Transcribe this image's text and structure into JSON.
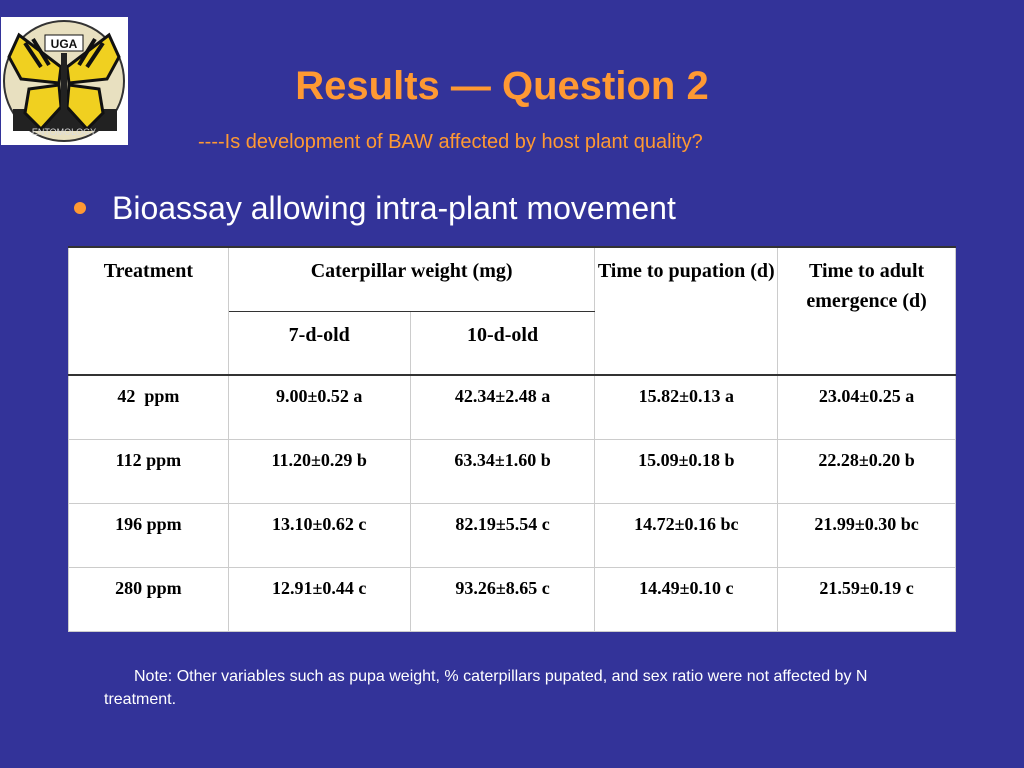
{
  "logo": {
    "name": "UGA Entomology butterfly logo",
    "top_text": "UGA",
    "bottom_text": "ENTOMOLOGY"
  },
  "slide": {
    "title": "Results — Question 2",
    "subtitle": "----Is development of BAW affected by host plant quality?",
    "bullet": "Bioassay allowing intra-plant movement",
    "note": "Note: Other variables such as pupa weight, % caterpillars pupated, and sex ratio were not affected by N treatment."
  },
  "table": {
    "headers": {
      "treatment": "Treatment",
      "caterpillar_weight": "Caterpillar weight (mg)",
      "weight_7d": "7-d-old",
      "weight_10d": "10-d-old",
      "time_pupation": "Time to pupation (d)",
      "time_adult": "Time to adult emergence (d)"
    },
    "rows": [
      {
        "treatment": "42  ppm",
        "w7": "9.00±0.52 a",
        "w10": "42.34±2.48 a",
        "pupation": "15.82±0.13 a",
        "adult": "23.04±0.25 a"
      },
      {
        "treatment": "112 ppm",
        "w7": "11.20±0.29 b",
        "w10": "63.34±1.60 b",
        "pupation": "15.09±0.18 b",
        "adult": "22.28±0.20 b"
      },
      {
        "treatment": "196 ppm",
        "w7": "13.10±0.62 c",
        "w10": "82.19±5.54 c",
        "pupation": "14.72±0.16 bc",
        "adult": "21.99±0.30 bc"
      },
      {
        "treatment": "280 ppm",
        "w7": "12.91±0.44 c",
        "w10": "93.26±8.65 c",
        "pupation": "14.49±0.10 c",
        "adult": "21.59±0.19 c"
      }
    ]
  },
  "colors": {
    "background": "#333399",
    "accent": "#ff9933",
    "text_light": "#ffffff"
  }
}
